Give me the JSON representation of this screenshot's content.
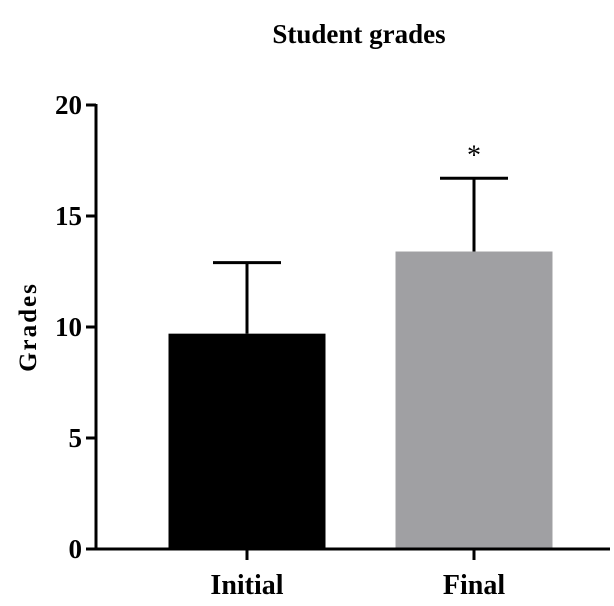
{
  "chart_data": {
    "type": "bar",
    "title": "Student grades",
    "xlabel": "",
    "ylabel": "Grades",
    "ylim": [
      0,
      20
    ],
    "yticks": [
      0,
      5,
      10,
      15,
      20
    ],
    "categories": [
      "Initial",
      "Final"
    ],
    "values": [
      9.7,
      13.4
    ],
    "error": [
      3.2,
      3.3
    ],
    "colors": [
      "#000000",
      "#a0a0a3"
    ],
    "annotations": [
      "",
      "*"
    ],
    "grid": false,
    "legend": "none"
  }
}
